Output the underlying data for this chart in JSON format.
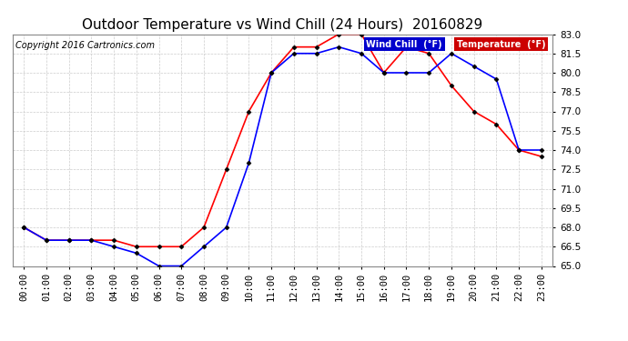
{
  "title": "Outdoor Temperature vs Wind Chill (24 Hours)  20160829",
  "copyright": "Copyright 2016 Cartronics.com",
  "x_labels": [
    "00:00",
    "01:00",
    "02:00",
    "03:00",
    "04:00",
    "05:00",
    "06:00",
    "07:00",
    "08:00",
    "09:00",
    "10:00",
    "11:00",
    "12:00",
    "13:00",
    "14:00",
    "15:00",
    "16:00",
    "17:00",
    "18:00",
    "19:00",
    "20:00",
    "21:00",
    "22:00",
    "23:00"
  ],
  "temperature": [
    68.0,
    67.0,
    67.0,
    67.0,
    67.0,
    66.5,
    66.5,
    66.5,
    68.0,
    72.5,
    77.0,
    80.0,
    82.0,
    82.0,
    83.0,
    83.0,
    80.0,
    82.0,
    81.5,
    79.0,
    77.0,
    76.0,
    74.0,
    73.5
  ],
  "wind_chill": [
    68.0,
    67.0,
    67.0,
    67.0,
    66.5,
    66.0,
    65.0,
    65.0,
    66.5,
    68.0,
    73.0,
    80.0,
    81.5,
    81.5,
    82.0,
    81.5,
    80.0,
    80.0,
    80.0,
    81.5,
    80.5,
    79.5,
    74.0,
    74.0
  ],
  "temp_color": "#ff0000",
  "wind_chill_color": "#0000ff",
  "ylim": [
    65.0,
    83.0
  ],
  "yticks": [
    65.0,
    66.5,
    68.0,
    69.5,
    71.0,
    72.5,
    74.0,
    75.5,
    77.0,
    78.5,
    80.0,
    81.5,
    83.0
  ],
  "bg_color": "#ffffff",
  "grid_color": "#cccccc",
  "legend_wind_chill_bg": "#0000cc",
  "legend_temp_bg": "#cc0000",
  "title_fontsize": 11,
  "axis_fontsize": 7.5,
  "copyright_fontsize": 7
}
